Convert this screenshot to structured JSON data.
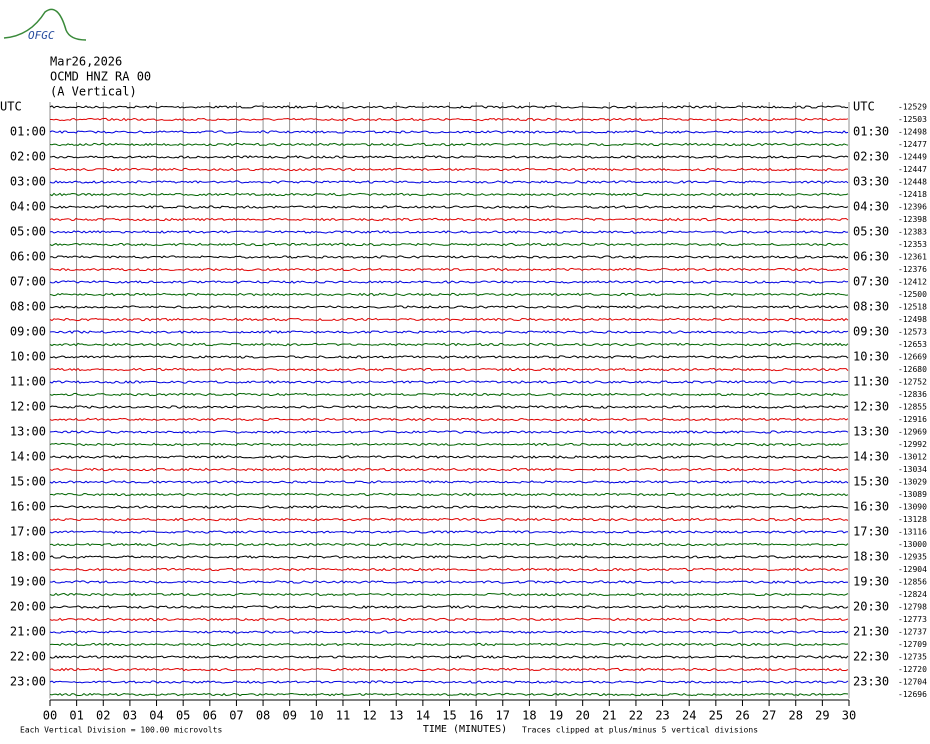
{
  "header": {
    "logo": "OFGC",
    "date": "Mar26,2026",
    "station": "OCMD HNZ RA 00",
    "component": "(A Vertical)"
  },
  "left_labels": [
    "UTC",
    "01:00",
    "02:00",
    "03:00",
    "04:00",
    "05:00",
    "06:00",
    "07:00",
    "08:00",
    "09:00",
    "10:00",
    "11:00",
    "12:00",
    "13:00",
    "14:00",
    "15:00",
    "16:00",
    "17:00",
    "18:00",
    "19:00",
    "20:00",
    "21:00",
    "22:00",
    "23:00"
  ],
  "right_labels": [
    "UTC",
    "01:30",
    "02:30",
    "03:30",
    "04:30",
    "05:30",
    "06:30",
    "07:30",
    "08:30",
    "09:30",
    "10:30",
    "11:30",
    "12:30",
    "13:30",
    "14:30",
    "15:30",
    "16:30",
    "17:30",
    "18:30",
    "19:30",
    "20:30",
    "21:30",
    "22:30",
    "23:30"
  ],
  "offsets": [
    -12529,
    -12503,
    -12498,
    -12477,
    -12449,
    -12447,
    -12448,
    -12418,
    -12396,
    -12398,
    -12383,
    -12353,
    -12361,
    -12376,
    -12412,
    -12500,
    -12518,
    -12498,
    -12573,
    -12653,
    -12669,
    -12680,
    -12752,
    -12836,
    -12855,
    -12916,
    -12969,
    -12992,
    -13012,
    -13034,
    -13029,
    -13089,
    -13090,
    -13128,
    -13116,
    -13000,
    -12935,
    -12904,
    -12856,
    -12824,
    -12798,
    -12773,
    -12737,
    -12709,
    -12735,
    -12720,
    -12704,
    -12696
  ],
  "x_labels": [
    "00",
    "01",
    "02",
    "03",
    "04",
    "05",
    "06",
    "07",
    "08",
    "09",
    "10",
    "11",
    "12",
    "13",
    "14",
    "15",
    "16",
    "17",
    "18",
    "19",
    "20",
    "21",
    "22",
    "23",
    "24",
    "25",
    "26",
    "27",
    "28",
    "29",
    "30"
  ],
  "footer": {
    "division": "Each Vertical Division =  100.00 microvolts",
    "axis_title": "TIME (MINUTES)",
    "clipping": "Traces clipped at plus/minus 5 vertical divisions"
  }
}
